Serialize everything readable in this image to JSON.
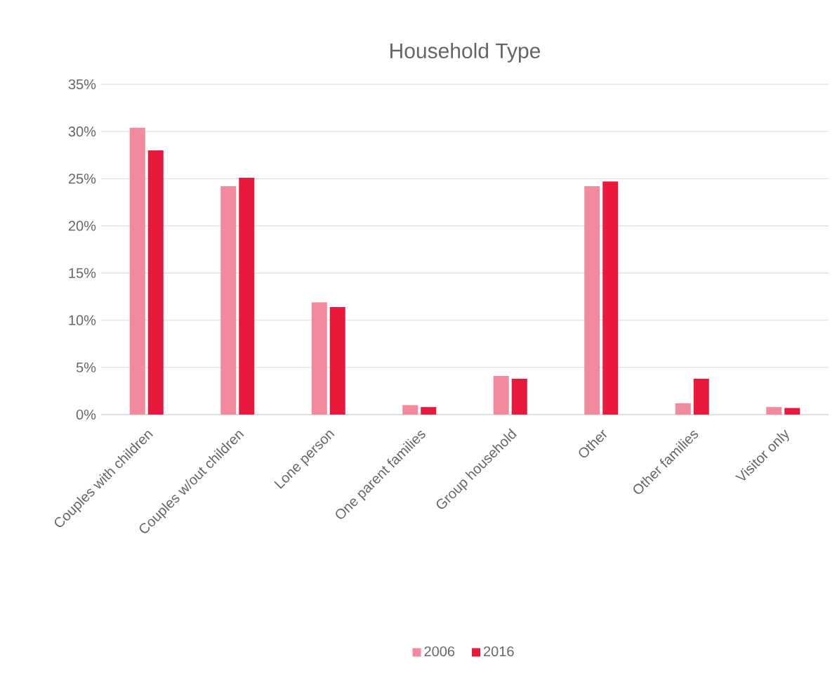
{
  "chart_data": {
    "type": "bar",
    "title": "Household Type",
    "categories": [
      "Couples with children",
      "Couples w/out children",
      "Lone person",
      "One parent families",
      "Group household",
      "Other",
      "Other families",
      "Visitor only"
    ],
    "series": [
      {
        "name": "2006",
        "color": "#f08a9c",
        "values": [
          30.4,
          24.2,
          11.9,
          1.0,
          4.1,
          24.2,
          1.2,
          0.8
        ]
      },
      {
        "name": "2016",
        "color": "#e8193c",
        "values": [
          28.0,
          25.1,
          11.4,
          0.8,
          3.8,
          24.7,
          3.8,
          0.7
        ]
      }
    ],
    "ylim": [
      0,
      35
    ],
    "yticks": [
      {
        "value": 0,
        "label": "0%"
      },
      {
        "value": 5,
        "label": "5%"
      },
      {
        "value": 10,
        "label": "10%"
      },
      {
        "value": 15,
        "label": "15%"
      },
      {
        "value": 20,
        "label": "20%"
      },
      {
        "value": 25,
        "label": "25%"
      },
      {
        "value": 30,
        "label": "30%"
      },
      {
        "value": 35,
        "label": "35%"
      }
    ],
    "grid": "y",
    "legend": "bottom"
  }
}
